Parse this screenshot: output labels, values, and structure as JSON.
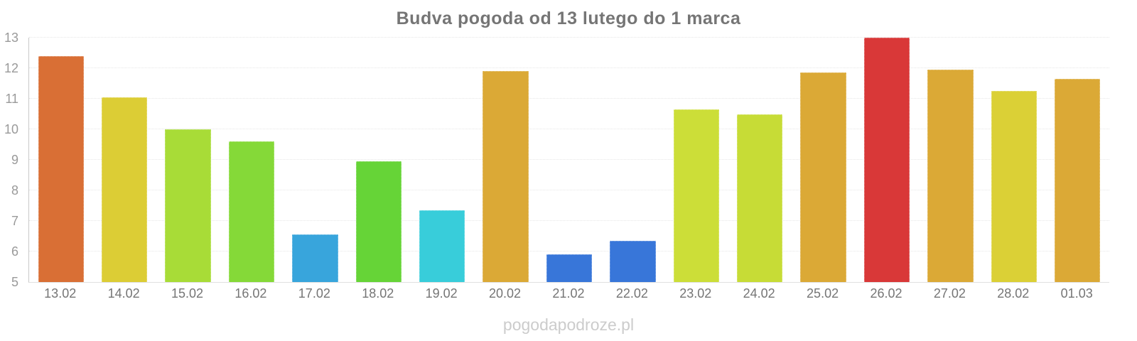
{
  "watermark": "pogodapodroze.pl",
  "chart_data": {
    "type": "bar",
    "title": "Budva pogoda od 13 lutego do 1 marca",
    "categories": [
      "13.02",
      "14.02",
      "15.02",
      "16.02",
      "17.02",
      "18.02",
      "19.02",
      "20.02",
      "21.02",
      "22.02",
      "23.02",
      "24.02",
      "25.02",
      "26.02",
      "27.02",
      "28.02",
      "01.03"
    ],
    "values": [
      12.4,
      11.05,
      10.0,
      9.6,
      6.55,
      8.95,
      7.35,
      11.9,
      5.9,
      6.35,
      10.65,
      10.5,
      11.85,
      13.0,
      11.95,
      11.25,
      11.65
    ],
    "bar_colors": [
      "#d96f35",
      "#dccd35",
      "#a8dc37",
      "#85d938",
      "#38a5dc",
      "#66d437",
      "#38cdda",
      "#dba936",
      "#3876d9",
      "#3876d9",
      "#ccde38",
      "#c7dc36",
      "#dba936",
      "#d93838",
      "#dba936",
      "#dbd036",
      "#dba936"
    ],
    "xlabel": "",
    "ylabel": "",
    "ylim": [
      5,
      13
    ],
    "yticks": [
      5,
      6,
      7,
      8,
      9,
      10,
      11,
      12,
      13
    ],
    "grid": true,
    "legend": false,
    "axis_color": "#c9c9c9",
    "tick_label_color": "#9a9a9a",
    "title_color": "#757575"
  }
}
